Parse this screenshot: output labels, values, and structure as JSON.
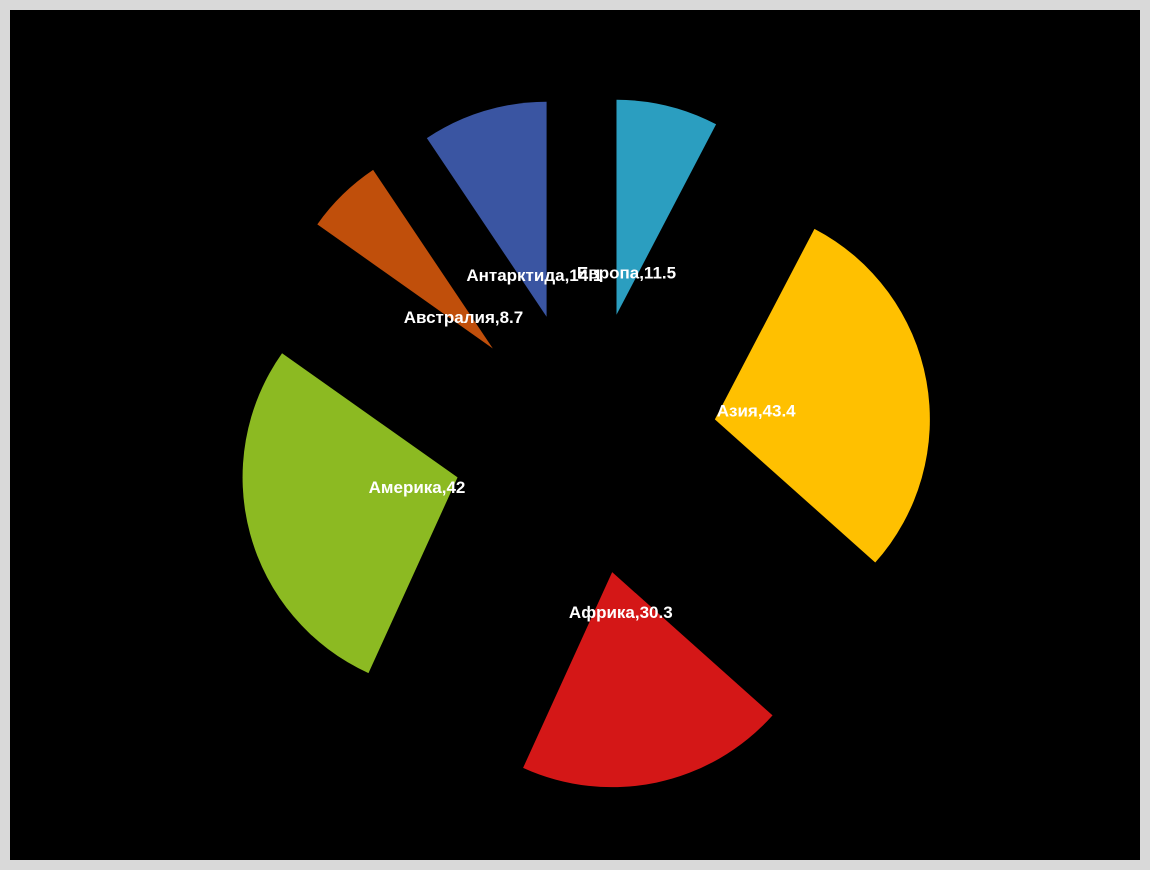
{
  "chart_data": {
    "type": "pie",
    "values": [
      11.5,
      43.4,
      30.3,
      42,
      8.7,
      14.1
    ],
    "value_labels": [
      "Европа,11.5",
      "Азия,43.4",
      "Африка,30.3",
      "Америка,42",
      "Австралия,8.7",
      "Антарктида,14.1"
    ],
    "colors": [
      "#2b9ec0",
      "#ffc000",
      "#d41717",
      "#8cba22",
      "#c04f0b",
      "#3a55a2"
    ]
  }
}
